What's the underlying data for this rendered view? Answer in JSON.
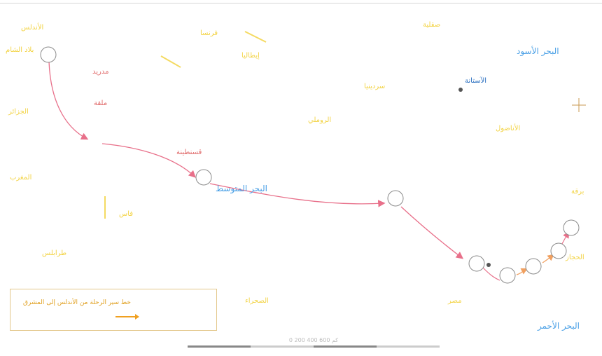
{
  "labels": {
    "sea_black": "البحر الأسود",
    "sea_med": "البحر المتوسط",
    "sea_red": "البحر الأحمر",
    "capital": "الآستانة",
    "city_madrid": "مدريد",
    "city_1": "ملقة",
    "city_2": "قسنطينة",
    "region_1": "الأندلس",
    "region_2": "فرنسا",
    "region_3": "إيطاليا",
    "region_4": "الروملي",
    "region_5": "الأناضول",
    "region_6": "الجزائر",
    "region_7": "طرابلس",
    "region_8": "مصر",
    "region_9": "الحجاز",
    "region_10": "الصحراء",
    "region_11": "برقة",
    "region_12": "بلاد الشام",
    "region_13": "المغرب",
    "region_14": "سردينيا",
    "region_15": "صقلية",
    "region_16": "فاس"
  },
  "legend": {
    "text": "خط سير الرحلة من الأندلس إلى المشرق"
  },
  "scale": {
    "label": "0     200     400     600 كم"
  },
  "colors": {
    "route": "#e8708a",
    "route_local": "#f0a060",
    "sea": "#4aa0e6",
    "region": "#f2d13a",
    "legend_border": "#e3c78a"
  }
}
